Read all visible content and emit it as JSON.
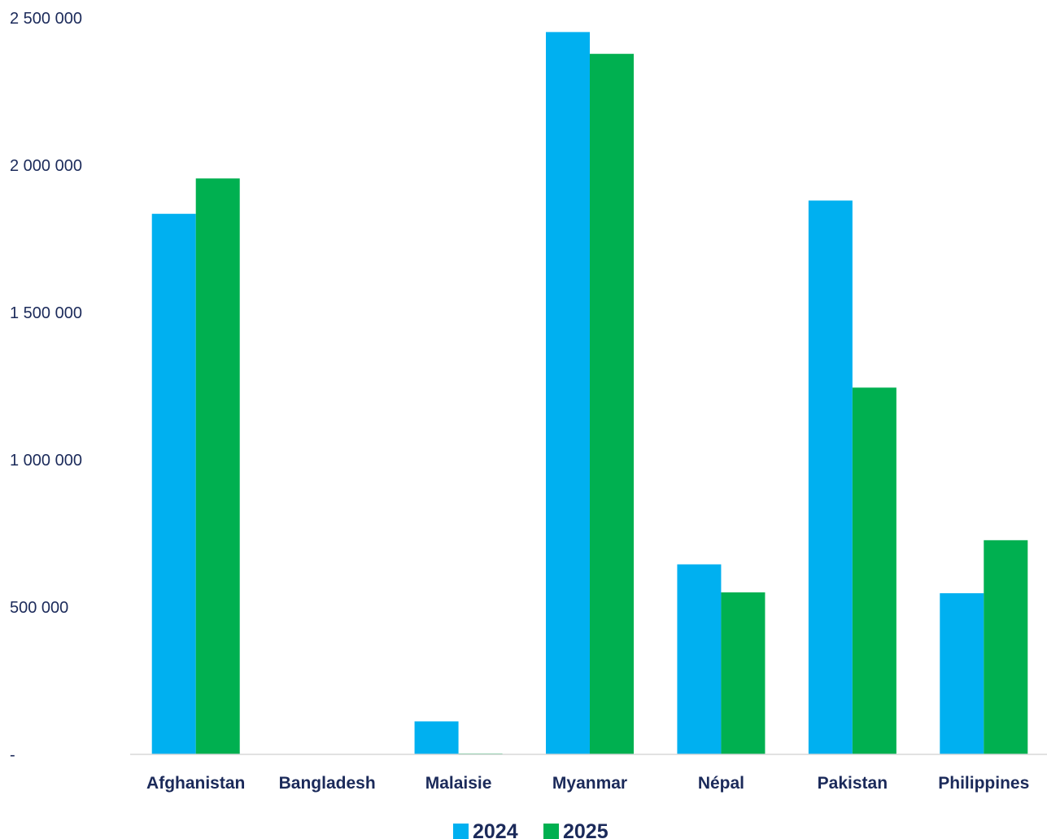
{
  "chart_data": {
    "type": "bar",
    "categories": [
      "Afghanistan",
      "Bangladesh",
      "Malaisie",
      "Myanmar",
      "Népal",
      "Pakistan",
      "Philippines"
    ],
    "series": [
      {
        "name": "2024",
        "color": "#00b0f0",
        "values": [
          1835000,
          0,
          112000,
          2452000,
          645000,
          1880000,
          547000
        ]
      },
      {
        "name": "2025",
        "color": "#00b050",
        "values": [
          1955000,
          0,
          3000,
          2378000,
          550000,
          1245000,
          727000
        ]
      }
    ],
    "yticks": [
      0,
      500000,
      1000000,
      1500000,
      2000000,
      2500000
    ],
    "ytick_labels": [
      "-",
      "500 000",
      "1 000 000",
      "1 500 000",
      "2 000 000",
      "2 500 000"
    ],
    "ylim": [
      0,
      2500000
    ],
    "grid": false,
    "legend_position": "bottom-center"
  }
}
